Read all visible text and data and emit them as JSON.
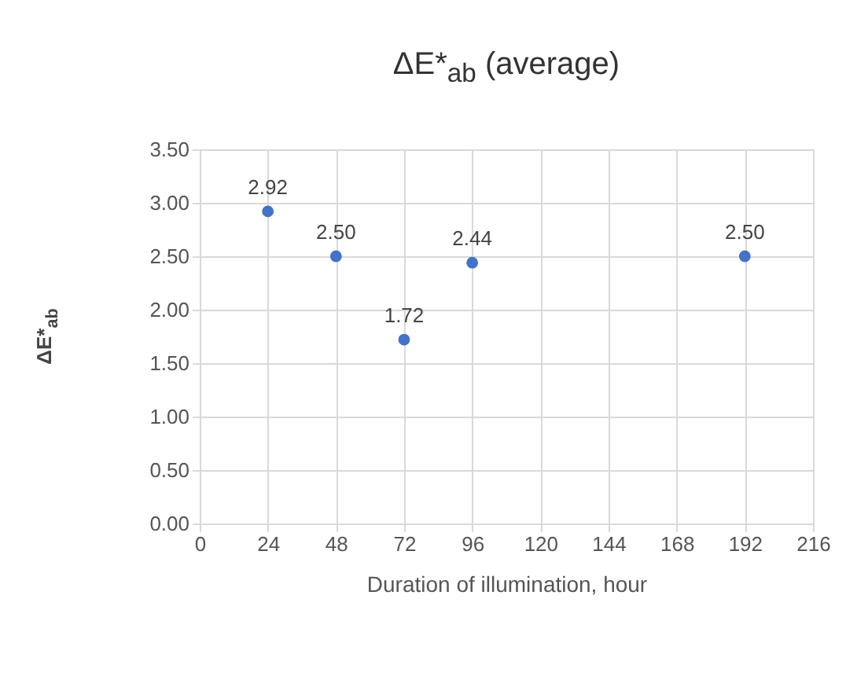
{
  "chart_data": {
    "type": "scatter",
    "title": "ΔE*$_{ab}$ (average)",
    "xlabel": "Duration of illumination, hour",
    "ylabel": "ΔE*$_{ab}$",
    "x": [
      24,
      48,
      72,
      96,
      192
    ],
    "series": [
      {
        "color": "#4472c4",
        "values": [
          2.92,
          2.5,
          1.72,
          2.44,
          2.5
        ],
        "value_labels": [
          "2.92",
          "2.50",
          "1.72",
          "2.44",
          "2.50"
        ]
      }
    ],
    "xlim": [
      0,
      216
    ],
    "xticks": [
      0,
      24,
      48,
      72,
      96,
      120,
      144,
      168,
      192,
      216
    ],
    "ylim": [
      0,
      3.5
    ],
    "yticks": [
      {
        "value": 0,
        "label": "0.00"
      },
      {
        "value": 0.5,
        "label": "0.50"
      },
      {
        "value": 1,
        "label": "1.00"
      },
      {
        "value": 1.5,
        "label": "1.50"
      },
      {
        "value": 2,
        "label": "2.00"
      },
      {
        "value": 2.5,
        "label": "2.50"
      },
      {
        "value": 3,
        "label": "3.00"
      },
      {
        "value": 3.5,
        "label": "3.50"
      }
    ],
    "grid": true,
    "marker": "circle"
  }
}
